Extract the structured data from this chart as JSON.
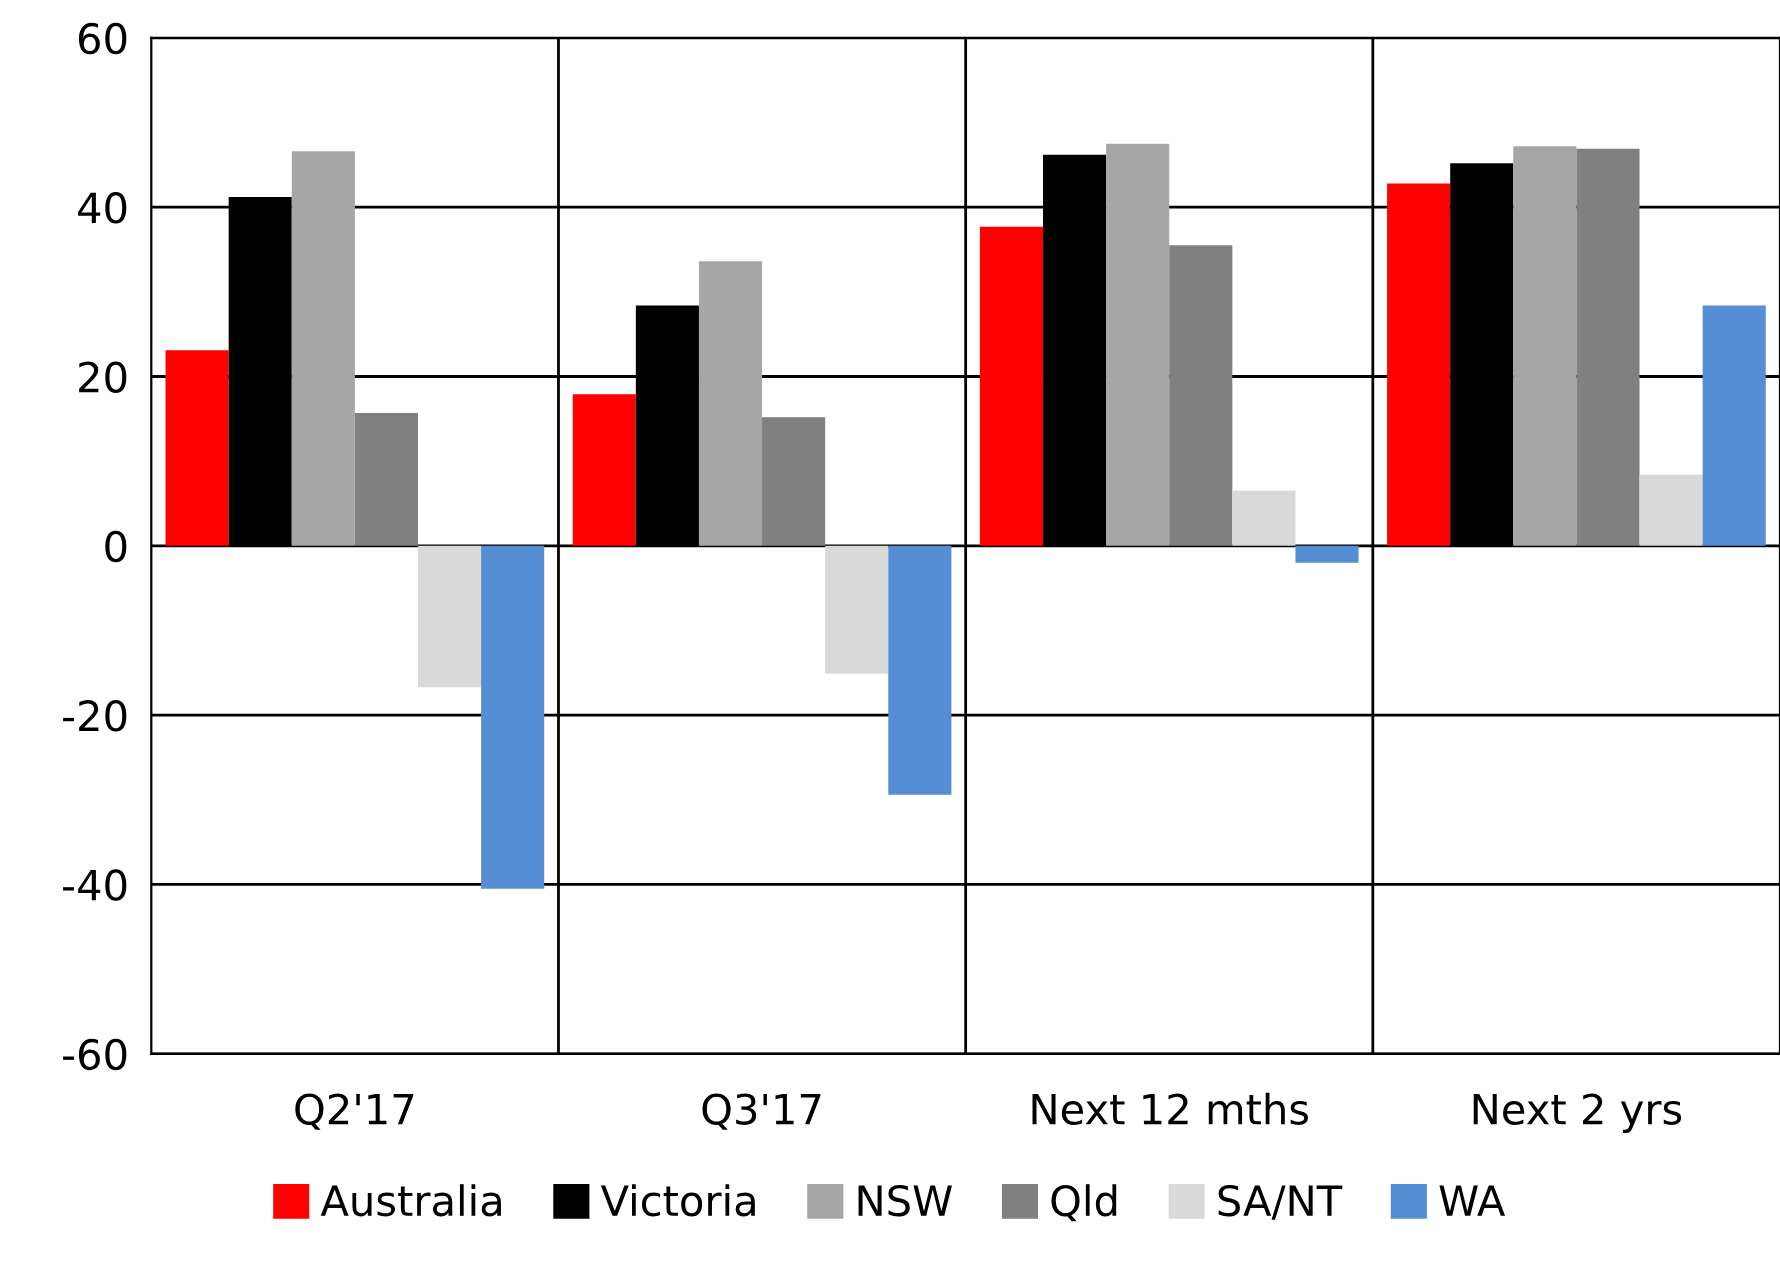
{
  "chart_data": {
    "type": "bar",
    "categories": [
      "Q2'17",
      "Q3'17",
      "Next 12 mths",
      "Next 2 yrs"
    ],
    "series": [
      {
        "name": "Australia",
        "color": "#ff0000",
        "values": [
          23.1,
          17.9,
          37.7,
          42.8
        ]
      },
      {
        "name": "Victoria",
        "color": "#000000",
        "values": [
          41.2,
          28.4,
          46.2,
          45.2
        ]
      },
      {
        "name": "NSW",
        "color": "#a6a6a6",
        "values": [
          46.6,
          33.6,
          47.5,
          47.2
        ]
      },
      {
        "name": "Qld",
        "color": "#808080",
        "values": [
          15.7,
          15.2,
          35.5,
          46.9
        ]
      },
      {
        "name": "SA/NT",
        "color": "#d9d9d9",
        "values": [
          -16.7,
          -15.1,
          6.5,
          8.4
        ]
      },
      {
        "name": "WA",
        "color": "#558ed5",
        "values": [
          -40.5,
          -29.4,
          -2.0,
          28.4
        ]
      }
    ],
    "ylim": [
      -60,
      60
    ],
    "yticks": [
      -60,
      -40,
      -20,
      0,
      20,
      40,
      60
    ],
    "grid": true,
    "legend": "bottom"
  }
}
